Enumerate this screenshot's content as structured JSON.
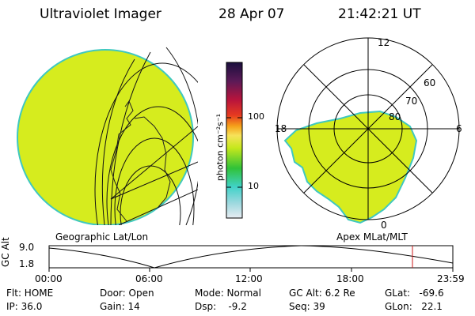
{
  "header": {
    "instrument": "Ultraviolet Imager",
    "date": "28 Apr 07",
    "time": "21:42:21 UT"
  },
  "colorbar": {
    "unit_label": "photon cm⁻²s⁻¹",
    "ticks": [
      "100",
      "10"
    ]
  },
  "polar_plot": {
    "mlt_labels": [
      "12",
      "18",
      "6",
      "0"
    ],
    "lat_labels": [
      "60",
      "70",
      "80"
    ]
  },
  "panel_titles": {
    "left": "Geographic Lat/Lon",
    "right": "Apex MLat/MLT"
  },
  "altitude_plot": {
    "ylabel": "GC Alt",
    "y_ticks": [
      "9.0",
      "1.8"
    ],
    "x_ticks": [
      "00:00",
      "06:00",
      "12:00",
      "18:00",
      "23:59"
    ],
    "current_time_marker": "21:42:21"
  },
  "status": {
    "flt": "Flt: HOME",
    "ip": "IP: 36.0",
    "door": "Door: Open",
    "gain": "Gain: 14",
    "mode": "Mode: Normal",
    "dsp": "Dsp:    -9.2",
    "gc_alt": "GC Alt: 6.2 Re",
    "seq": "Seq: 39",
    "glat": "GLat:   -69.6",
    "glon": "GLon:   22.1"
  },
  "colors": {
    "image_fill": "#d6ec1e",
    "image_edge": "#3fc8c0",
    "current_time_marker": "#cc1b1b"
  }
}
